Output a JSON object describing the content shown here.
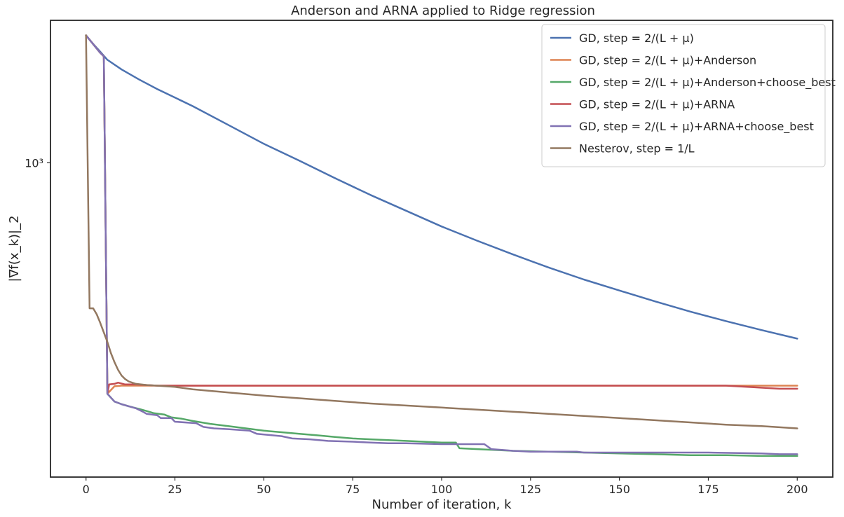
{
  "chart_data": {
    "type": "line",
    "title": "Anderson and ARNA applied to Ridge regression",
    "xlabel": "Number of iteration, k",
    "ylabel": "|∇f(x_k)|_2",
    "yscale": "log",
    "xlim": [
      -10,
      210
    ],
    "ylim": [
      205,
      2050
    ],
    "grid": false,
    "legend_position": "top-right",
    "x_ticks": [
      0,
      25,
      50,
      75,
      100,
      125,
      150,
      175,
      200
    ],
    "x_tick_labels": [
      "0",
      "25",
      "50",
      "75",
      "100",
      "125",
      "150",
      "175",
      "200"
    ],
    "y_ticks": [
      1000
    ],
    "y_tick_labels": [
      "10³"
    ],
    "series": [
      {
        "name": "GD, step = 2/(L + μ)",
        "color": "#4c72b0",
        "points": [
          [
            0,
            1900
          ],
          [
            2,
            1820
          ],
          [
            4,
            1750
          ],
          [
            6,
            1680
          ],
          [
            10,
            1600
          ],
          [
            15,
            1520
          ],
          [
            20,
            1450
          ],
          [
            30,
            1330
          ],
          [
            40,
            1210
          ],
          [
            50,
            1100
          ],
          [
            60,
            1010
          ],
          [
            70,
            925
          ],
          [
            80,
            850
          ],
          [
            90,
            785
          ],
          [
            100,
            725
          ],
          [
            110,
            675
          ],
          [
            120,
            630
          ],
          [
            130,
            590
          ],
          [
            140,
            555
          ],
          [
            150,
            525
          ],
          [
            160,
            497
          ],
          [
            170,
            472
          ],
          [
            180,
            450
          ],
          [
            190,
            430
          ],
          [
            200,
            412
          ]
        ]
      },
      {
        "name": "GD, step = 2/(L + μ)+Anderson",
        "color": "#dd8452",
        "points": [
          [
            0,
            1900
          ],
          [
            4,
            1740
          ],
          [
            5,
            1710
          ],
          [
            6,
            312
          ],
          [
            8,
            324
          ],
          [
            10,
            325
          ],
          [
            50,
            325
          ],
          [
            100,
            325
          ],
          [
            150,
            325
          ],
          [
            200,
            325
          ]
        ]
      },
      {
        "name": "GD, step = 2/(L + μ)+Anderson+choose_best",
        "color": "#55a868",
        "points": [
          [
            0,
            1900
          ],
          [
            4,
            1740
          ],
          [
            5,
            1710
          ],
          [
            6,
            312
          ],
          [
            8,
            300
          ],
          [
            10,
            296
          ],
          [
            12,
            293
          ],
          [
            15,
            289
          ],
          [
            17,
            286
          ],
          [
            19,
            283
          ],
          [
            22,
            281
          ],
          [
            24,
            277
          ],
          [
            27,
            275
          ],
          [
            30,
            272
          ],
          [
            35,
            268
          ],
          [
            40,
            265
          ],
          [
            45,
            262
          ],
          [
            50,
            259
          ],
          [
            55,
            257
          ],
          [
            60,
            255
          ],
          [
            65,
            253
          ],
          [
            70,
            251
          ],
          [
            75,
            249
          ],
          [
            80,
            248
          ],
          [
            90,
            246
          ],
          [
            100,
            244
          ],
          [
            104,
            244
          ],
          [
            105,
            237
          ],
          [
            110,
            236
          ],
          [
            120,
            234
          ],
          [
            130,
            233
          ],
          [
            140,
            232
          ],
          [
            150,
            231
          ],
          [
            160,
            230
          ],
          [
            170,
            229
          ],
          [
            180,
            229
          ],
          [
            190,
            228
          ],
          [
            200,
            228
          ]
        ]
      },
      {
        "name": "GD, step = 2/(L + μ)+ARNA",
        "color": "#c44e52",
        "points": [
          [
            0,
            1900
          ],
          [
            4,
            1740
          ],
          [
            5,
            1710
          ],
          [
            6,
            312
          ],
          [
            6.5,
            327
          ],
          [
            8,
            328
          ],
          [
            9,
            330
          ],
          [
            11,
            327
          ],
          [
            14,
            327
          ],
          [
            20,
            325
          ],
          [
            50,
            325
          ],
          [
            100,
            325
          ],
          [
            150,
            325
          ],
          [
            180,
            325
          ],
          [
            183,
            324
          ],
          [
            186,
            323
          ],
          [
            189,
            322
          ],
          [
            192,
            321
          ],
          [
            195,
            320
          ],
          [
            200,
            320
          ]
        ]
      },
      {
        "name": "GD, step = 2/(L + μ)+ARNA+choose_best",
        "color": "#8172b3",
        "points": [
          [
            0,
            1900
          ],
          [
            4,
            1740
          ],
          [
            5,
            1710
          ],
          [
            6,
            312
          ],
          [
            8,
            300
          ],
          [
            10,
            296
          ],
          [
            14,
            290
          ],
          [
            16,
            285
          ],
          [
            17,
            282
          ],
          [
            20,
            280
          ],
          [
            21,
            276
          ],
          [
            24,
            276
          ],
          [
            25,
            271
          ],
          [
            31,
            269
          ],
          [
            33,
            264
          ],
          [
            36,
            262
          ],
          [
            40,
            261
          ],
          [
            46,
            259
          ],
          [
            48,
            255
          ],
          [
            55,
            252
          ],
          [
            58,
            249
          ],
          [
            63,
            248
          ],
          [
            68,
            246
          ],
          [
            75,
            245
          ],
          [
            80,
            244
          ],
          [
            85,
            243
          ],
          [
            90,
            243
          ],
          [
            100,
            242
          ],
          [
            112,
            242
          ],
          [
            114,
            236
          ],
          [
            117,
            235
          ],
          [
            120,
            234
          ],
          [
            125,
            233
          ],
          [
            138,
            233
          ],
          [
            140,
            232
          ],
          [
            160,
            232
          ],
          [
            175,
            232
          ],
          [
            190,
            231
          ],
          [
            195,
            230
          ],
          [
            200,
            230
          ]
        ]
      },
      {
        "name": "Nesterov, step = 1/L",
        "color": "#937860",
        "points": [
          [
            0,
            1900
          ],
          [
            1,
            480
          ],
          [
            2,
            480
          ],
          [
            3,
            466
          ],
          [
            4,
            446
          ],
          [
            5,
            425
          ],
          [
            6,
            405
          ],
          [
            7,
            383
          ],
          [
            8,
            366
          ],
          [
            9,
            352
          ],
          [
            10,
            342
          ],
          [
            11,
            336
          ],
          [
            12,
            332
          ],
          [
            14,
            328
          ],
          [
            17,
            326
          ],
          [
            20,
            325
          ],
          [
            25,
            323
          ],
          [
            30,
            319
          ],
          [
            40,
            314
          ],
          [
            50,
            309
          ],
          [
            60,
            305
          ],
          [
            70,
            301
          ],
          [
            80,
            297
          ],
          [
            90,
            294
          ],
          [
            100,
            291
          ],
          [
            110,
            288
          ],
          [
            120,
            285
          ],
          [
            130,
            282
          ],
          [
            140,
            279
          ],
          [
            150,
            276
          ],
          [
            160,
            273
          ],
          [
            170,
            270
          ],
          [
            180,
            267
          ],
          [
            190,
            265
          ],
          [
            200,
            262
          ]
        ]
      }
    ]
  }
}
